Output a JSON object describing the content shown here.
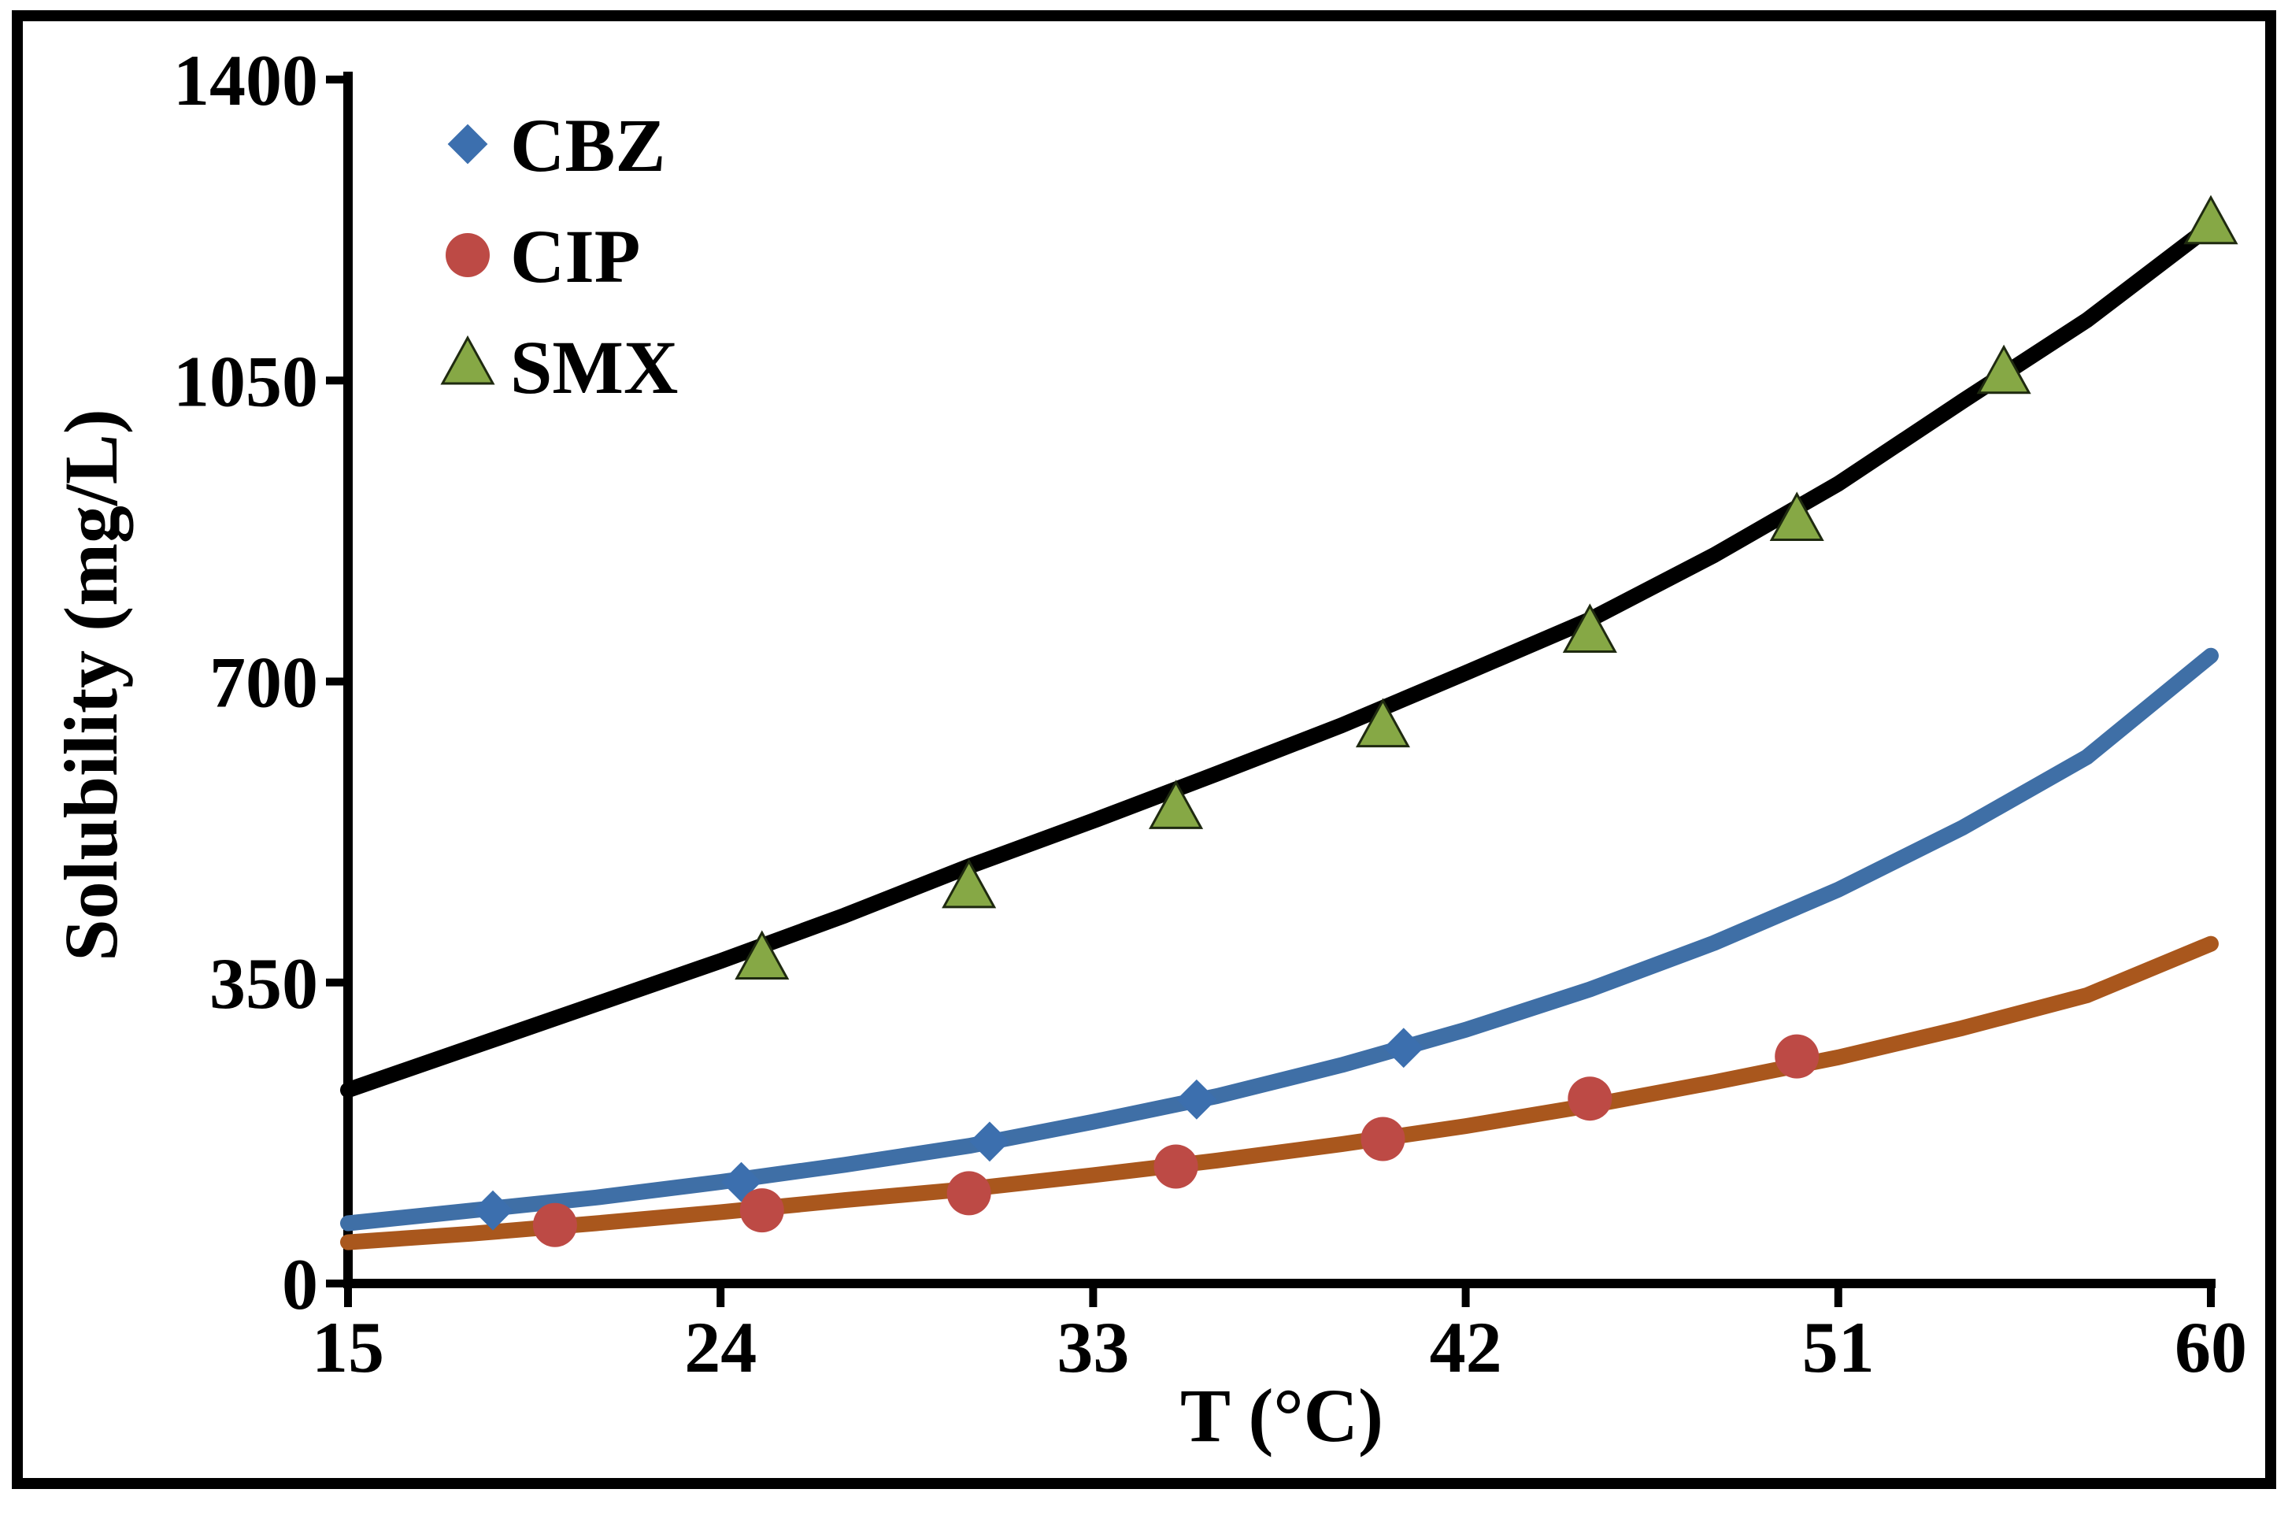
{
  "chart_data": {
    "type": "line",
    "title": "",
    "xlabel": "T (°C)",
    "ylabel": "Solubility (mg/L)",
    "xlim": [
      15,
      60
    ],
    "ylim": [
      0,
      1400
    ],
    "x_ticks": [
      15,
      24,
      33,
      42,
      51,
      60
    ],
    "x_tick_labels": [
      "15",
      "24",
      "33",
      "42",
      "51",
      "60"
    ],
    "y_ticks": [
      0,
      350,
      700,
      1050,
      1400
    ],
    "y_tick_labels": [
      "0",
      "350",
      "700",
      "1050",
      "1400"
    ],
    "grid": false,
    "legend_position": "top-left",
    "series": [
      {
        "name": "CBZ",
        "marker": "diamond",
        "marker_color": "#3c6fae",
        "line_color": "#3f6fa6",
        "line_x": [
          15,
          18,
          21,
          24,
          27,
          30,
          33,
          36,
          39,
          42,
          45,
          48,
          51,
          54,
          57,
          60
        ],
        "line_y": [
          70,
          85,
          100,
          118,
          138,
          160,
          188,
          218,
          254,
          295,
          342,
          396,
          458,
          530,
          612,
          730
        ],
        "points": [
          [
            18.5,
            85
          ],
          [
            24.5,
            118
          ],
          [
            30.5,
            165
          ],
          [
            35.5,
            214
          ],
          [
            40.5,
            274
          ]
        ]
      },
      {
        "name": "CIP",
        "marker": "circle",
        "marker_color": "#bd4a45",
        "line_color": "#a9571d",
        "line_x": [
          15,
          18,
          21,
          24,
          27,
          30,
          33,
          36,
          39,
          42,
          45,
          48,
          51,
          54,
          57,
          60
        ],
        "line_y": [
          48,
          58,
          70,
          83,
          97,
          110,
          126,
          143,
          162,
          183,
          207,
          234,
          263,
          297,
          335,
          395
        ],
        "points": [
          [
            20,
            68
          ],
          [
            25,
            85
          ],
          [
            30,
            105
          ],
          [
            35,
            136
          ],
          [
            40,
            168
          ],
          [
            45,
            215
          ],
          [
            50,
            264
          ]
        ]
      },
      {
        "name": "SMX",
        "marker": "triangle",
        "marker_color": "#86a845",
        "line_color": "#000000",
        "line_x": [
          15,
          18,
          21,
          24,
          27,
          30,
          33,
          36,
          39,
          42,
          45,
          48,
          51,
          54,
          57,
          60
        ],
        "line_y": [
          225,
          275,
          325,
          375,
          428,
          485,
          538,
          593,
          649,
          710,
          772,
          847,
          930,
          1026,
          1120,
          1230
        ],
        "points": [
          [
            25,
            375
          ],
          [
            30,
            458
          ],
          [
            35,
            550
          ],
          [
            40,
            645
          ],
          [
            45,
            755
          ],
          [
            50,
            885
          ],
          [
            55,
            1056
          ],
          [
            60,
            1230
          ]
        ]
      }
    ]
  }
}
